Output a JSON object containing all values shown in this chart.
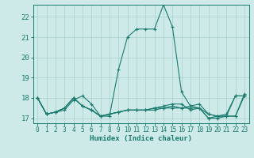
{
  "title": "",
  "xlabel": "Humidex (Indice chaleur)",
  "ylabel": "",
  "bg_color": "#cdeae8",
  "grid_color": "#aed4d0",
  "line_color": "#1a7a6e",
  "xlim": [
    -0.5,
    23.5
  ],
  "ylim": [
    16.75,
    22.6
  ],
  "xticks": [
    0,
    1,
    2,
    3,
    4,
    5,
    6,
    7,
    8,
    9,
    10,
    11,
    12,
    13,
    14,
    15,
    16,
    17,
    18,
    19,
    20,
    21,
    22,
    23
  ],
  "yticks": [
    17,
    18,
    19,
    20,
    21,
    22
  ],
  "series": [
    [
      18.0,
      17.2,
      17.3,
      17.4,
      17.9,
      18.1,
      17.7,
      17.1,
      17.1,
      19.4,
      21.0,
      21.4,
      21.4,
      21.4,
      22.6,
      21.5,
      18.3,
      17.6,
      17.5,
      17.2,
      17.1,
      17.1,
      18.1,
      18.1
    ],
    [
      18.0,
      17.2,
      17.3,
      17.5,
      18.0,
      17.6,
      17.4,
      17.1,
      17.2,
      17.3,
      17.4,
      17.4,
      17.4,
      17.4,
      17.5,
      17.5,
      17.5,
      17.5,
      17.5,
      17.0,
      17.0,
      17.1,
      17.1,
      18.1
    ],
    [
      18.0,
      17.2,
      17.3,
      17.5,
      18.0,
      17.6,
      17.4,
      17.1,
      17.2,
      17.3,
      17.4,
      17.4,
      17.4,
      17.5,
      17.5,
      17.6,
      17.5,
      17.6,
      17.7,
      17.2,
      17.1,
      17.2,
      18.1,
      18.1
    ],
    [
      18.0,
      17.2,
      17.3,
      17.5,
      18.0,
      17.6,
      17.4,
      17.1,
      17.2,
      17.3,
      17.4,
      17.4,
      17.4,
      17.5,
      17.6,
      17.7,
      17.7,
      17.4,
      17.5,
      17.0,
      17.1,
      17.1,
      17.1,
      18.2
    ]
  ]
}
